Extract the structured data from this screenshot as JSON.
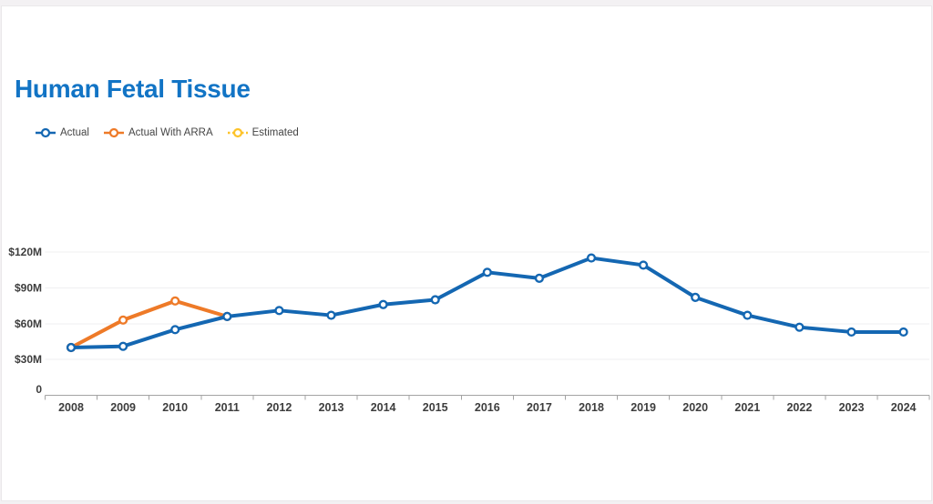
{
  "chart_data": {
    "type": "line",
    "title": "Human Fetal Tissue",
    "title_color": "#1274c5",
    "legend_position": "top-left",
    "grid": true,
    "categories": [
      "2008",
      "2009",
      "2010",
      "2011",
      "2012",
      "2013",
      "2014",
      "2015",
      "2016",
      "2017",
      "2018",
      "2019",
      "2020",
      "2021",
      "2022",
      "2023",
      "2024"
    ],
    "series": [
      {
        "name": "Actual",
        "color": "#1467b2",
        "line_style": "solid",
        "values": [
          40,
          41,
          55,
          66,
          71,
          67,
          76,
          80,
          103,
          98,
          115,
          109,
          82,
          67,
          57,
          53,
          53
        ]
      },
      {
        "name": "Actual With ARRA",
        "color": "#ee7a28",
        "line_style": "solid",
        "values": [
          40,
          63,
          79,
          66,
          null,
          null,
          null,
          null,
          null,
          null,
          null,
          null,
          null,
          null,
          null,
          null,
          null
        ]
      },
      {
        "name": "Estimated",
        "color": "#fdc32a",
        "line_style": "dashed",
        "values": [
          null,
          null,
          null,
          null,
          null,
          null,
          null,
          null,
          null,
          null,
          null,
          null,
          null,
          null,
          null,
          null,
          null
        ]
      }
    ],
    "y_axis": {
      "unit": "$M",
      "range": [
        0,
        125
      ],
      "ticks": [
        {
          "value": 0,
          "label": "0"
        },
        {
          "value": 30,
          "label": "$30M"
        },
        {
          "value": 60,
          "label": "$60M"
        },
        {
          "value": 90,
          "label": "$90M"
        },
        {
          "value": 120,
          "label": "$120M"
        }
      ]
    },
    "x_axis": {
      "label": "",
      "tick_mode": "between-categories"
    }
  }
}
